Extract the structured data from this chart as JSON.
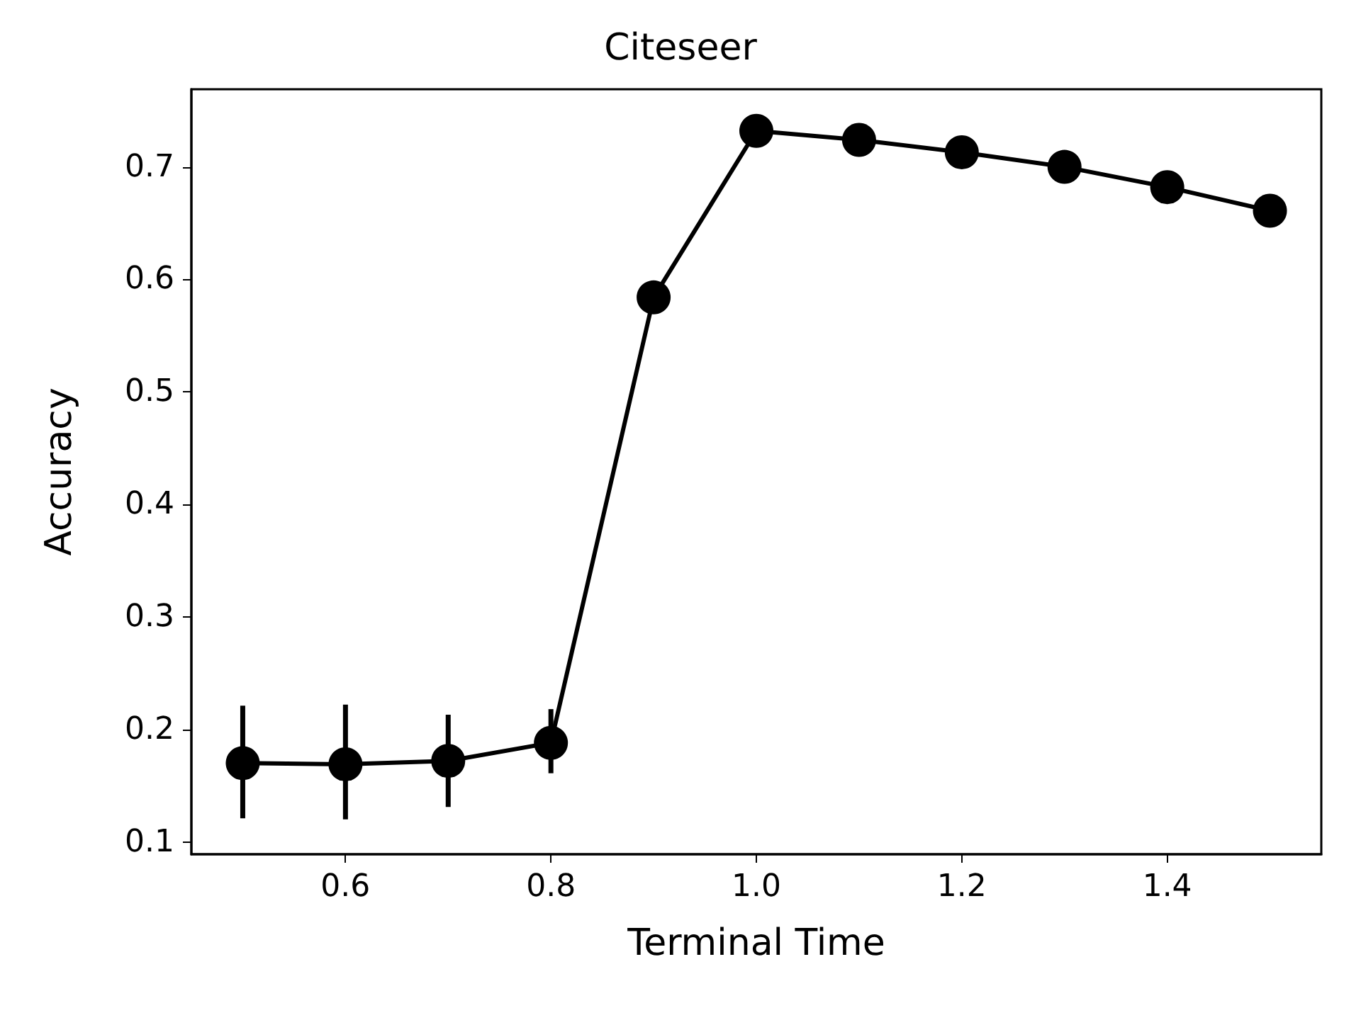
{
  "chart_data": {
    "type": "line",
    "title": "Citeseer",
    "xlabel": "Terminal Time",
    "ylabel": "Accuracy",
    "x": [
      0.5,
      0.6,
      0.7,
      0.8,
      0.9,
      1.0,
      1.1,
      1.2,
      1.3,
      1.4,
      1.5
    ],
    "series": [
      {
        "color": "#000000",
        "values": [
          0.17,
          0.169,
          0.172,
          0.188,
          0.584,
          0.732,
          0.724,
          0.713,
          0.7,
          0.682,
          0.661
        ],
        "errors": [
          [
            0.121,
            0.221
          ],
          [
            0.12,
            0.222
          ],
          [
            0.131,
            0.213
          ],
          [
            0.161,
            0.218
          ],
          null,
          null,
          null,
          null,
          null,
          null,
          null
        ]
      }
    ],
    "xlim": [
      0.45,
      1.55
    ],
    "ylim": [
      0.089,
      0.769
    ],
    "xticks": [
      0.6,
      0.8,
      {
        "value": 1,
        "label": "1.0"
      },
      1.2,
      1.4
    ],
    "yticks": [
      0.1,
      0.2,
      0.3,
      0.4,
      0.5,
      0.6,
      0.7
    ],
    "grid": false,
    "marker": "circle",
    "line_style": "solid"
  }
}
